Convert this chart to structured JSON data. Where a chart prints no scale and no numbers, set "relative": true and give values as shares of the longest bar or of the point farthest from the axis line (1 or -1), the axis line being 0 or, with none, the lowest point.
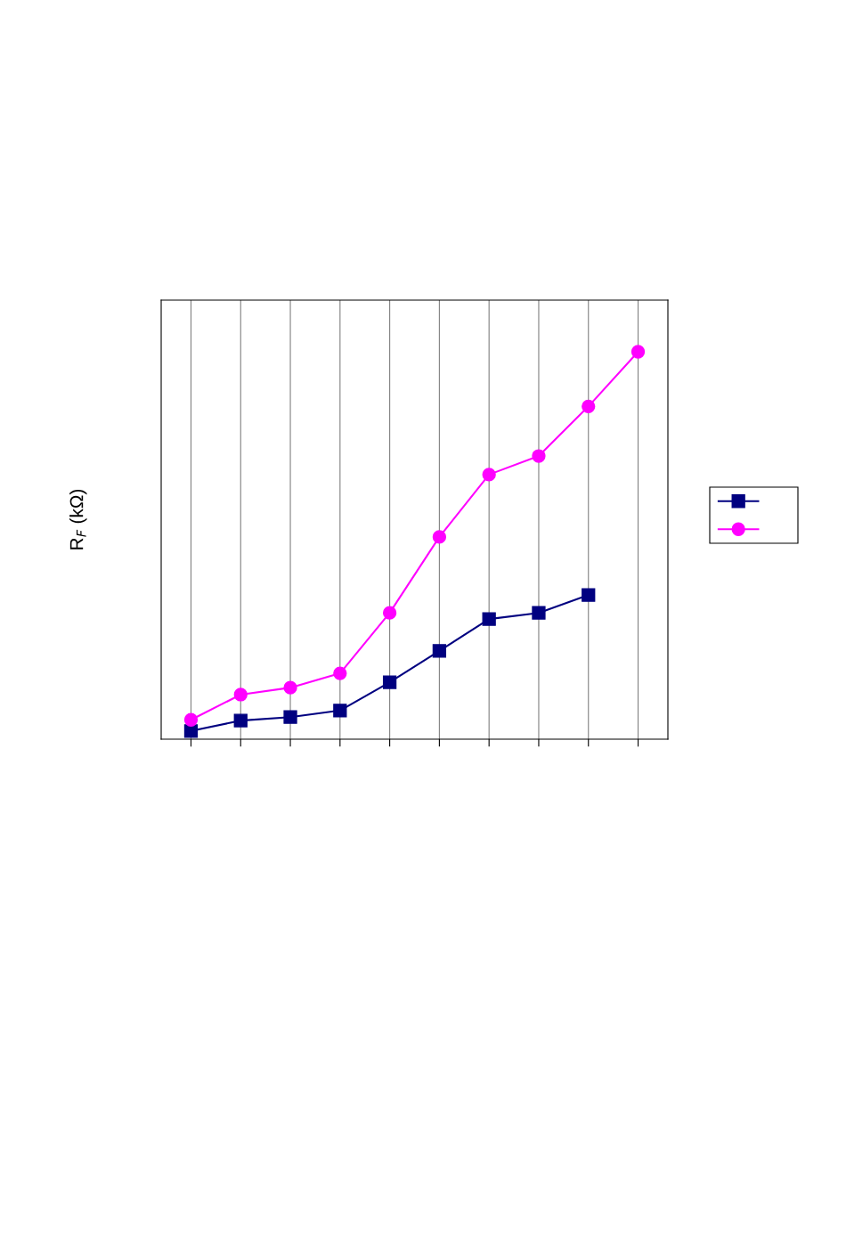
{
  "chart_data": {
    "type": "line",
    "ylabel": "R$_{F}$ (kΩ)",
    "relative": true,
    "categories": [
      null,
      null,
      null,
      null,
      null,
      null,
      null,
      null,
      null,
      null
    ],
    "grid": "x",
    "line_style": "solid",
    "series": [
      {
        "color": "#000080",
        "marker": "square",
        "values": [
          0.021,
          0.048,
          0.057,
          0.074,
          0.147,
          0.228,
          0.31,
          0.326,
          0.372,
          null
        ]
      },
      {
        "color": "#ff00ff",
        "marker": "circle",
        "values": [
          0.05,
          0.115,
          0.133,
          0.17,
          0.326,
          0.522,
          0.683,
          0.731,
          0.859,
          1.0
        ]
      }
    ]
  }
}
